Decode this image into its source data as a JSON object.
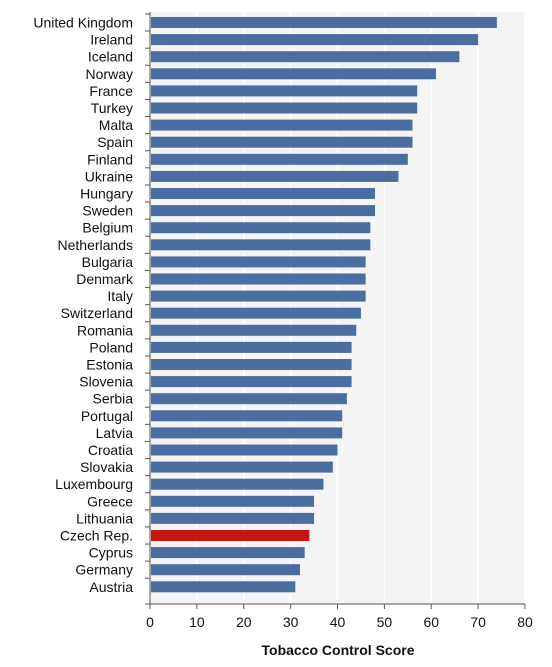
{
  "chart_data": {
    "type": "bar",
    "orientation": "horizontal",
    "title": "",
    "xlabel": "Tobacco Control Score",
    "ylabel": "",
    "xlim": [
      0,
      80
    ],
    "xticks": [
      "0",
      "10",
      "20",
      "30",
      "40",
      "50",
      "60",
      "70",
      "80"
    ],
    "grid": true,
    "categories": [
      "United Kingdom",
      "Ireland",
      "Iceland",
      "Norway",
      "France",
      "Turkey",
      "Malta",
      "Spain",
      "Finland",
      "Ukraine",
      "Hungary",
      "Sweden",
      "Belgium",
      "Netherlands",
      "Bulgaria",
      "Denmark",
      "Italy",
      "Switzerland",
      "Romania",
      "Poland",
      "Estonia",
      "Slovenia",
      "Serbia",
      "Portugal",
      "Latvia",
      "Croatia",
      "Slovakia",
      "Luxembourg",
      "Greece",
      "Lithuania",
      "Czech Rep.",
      "Cyprus",
      "Germany",
      "Austria"
    ],
    "values": [
      74,
      70,
      66,
      61,
      57,
      57,
      56,
      56,
      55,
      53,
      48,
      48,
      47,
      47,
      46,
      46,
      46,
      45,
      44,
      43,
      43,
      43,
      42,
      41,
      41,
      40,
      39,
      37,
      35,
      35,
      34,
      33,
      32,
      31
    ],
    "colors": {
      "default": "#4a6e9f",
      "highlight": "#c4170d",
      "grid": "#ffffff",
      "plot_background": "#f4f4f4"
    },
    "highlight": [
      "Czech Rep."
    ]
  }
}
